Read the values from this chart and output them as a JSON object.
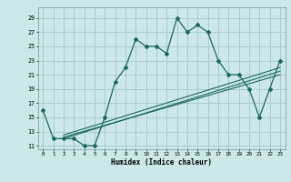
{
  "title": "",
  "xlabel": "Humidex (Indice chaleur)",
  "bg_color": "#cce8e8",
  "grid_color": "#aacccc",
  "line_color": "#1a6b5a",
  "xlim": [
    -0.5,
    23.5
  ],
  "ylim": [
    10.5,
    30.5
  ],
  "xticks": [
    0,
    1,
    2,
    3,
    4,
    5,
    6,
    7,
    8,
    9,
    10,
    11,
    12,
    13,
    14,
    15,
    16,
    17,
    18,
    19,
    20,
    21,
    22,
    23
  ],
  "yticks": [
    11,
    13,
    15,
    17,
    19,
    21,
    23,
    25,
    27,
    29
  ],
  "main_x": [
    0,
    1,
    2,
    3,
    4,
    5,
    6,
    7,
    8,
    9,
    10,
    11,
    12,
    13,
    14,
    15,
    16,
    17,
    18,
    19,
    20,
    21,
    22,
    23
  ],
  "main_y": [
    16,
    12,
    12,
    12,
    11,
    11,
    15,
    20,
    22,
    26,
    25,
    25,
    24,
    29,
    27,
    28,
    27,
    23,
    21,
    21,
    19,
    15,
    19,
    23
  ],
  "reg_lines": [
    {
      "x": [
        2,
        23
      ],
      "y": [
        12.0,
        21.5
      ]
    },
    {
      "x": [
        2,
        23
      ],
      "y": [
        12.2,
        21.0
      ]
    },
    {
      "x": [
        2,
        23
      ],
      "y": [
        12.5,
        22.0
      ]
    }
  ]
}
